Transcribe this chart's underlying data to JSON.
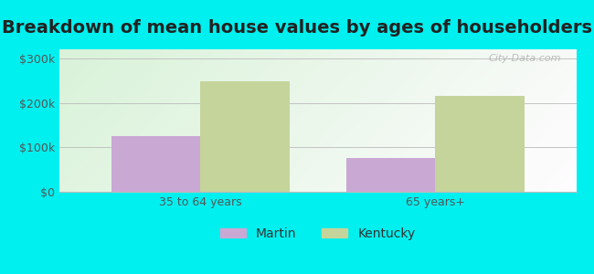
{
  "title": "Breakdown of mean house values by ages of householders",
  "categories": [
    "35 to 64 years",
    "65 years+"
  ],
  "martin_values": [
    125000,
    75000
  ],
  "kentucky_values": [
    248000,
    215000
  ],
  "martin_color": "#c9a8d4",
  "kentucky_color": "#c5d49a",
  "background_color": "#00f0f0",
  "yticks": [
    0,
    100000,
    200000,
    300000
  ],
  "ytick_labels": [
    "$0",
    "$100k",
    "$200k",
    "$300k"
  ],
  "ylim": [
    0,
    320000
  ],
  "legend_labels": [
    "Martin",
    "Kentucky"
  ],
  "title_fontsize": 14,
  "tick_fontsize": 9,
  "legend_fontsize": 10,
  "bar_width": 0.38,
  "watermark_text": "City-Data.com"
}
